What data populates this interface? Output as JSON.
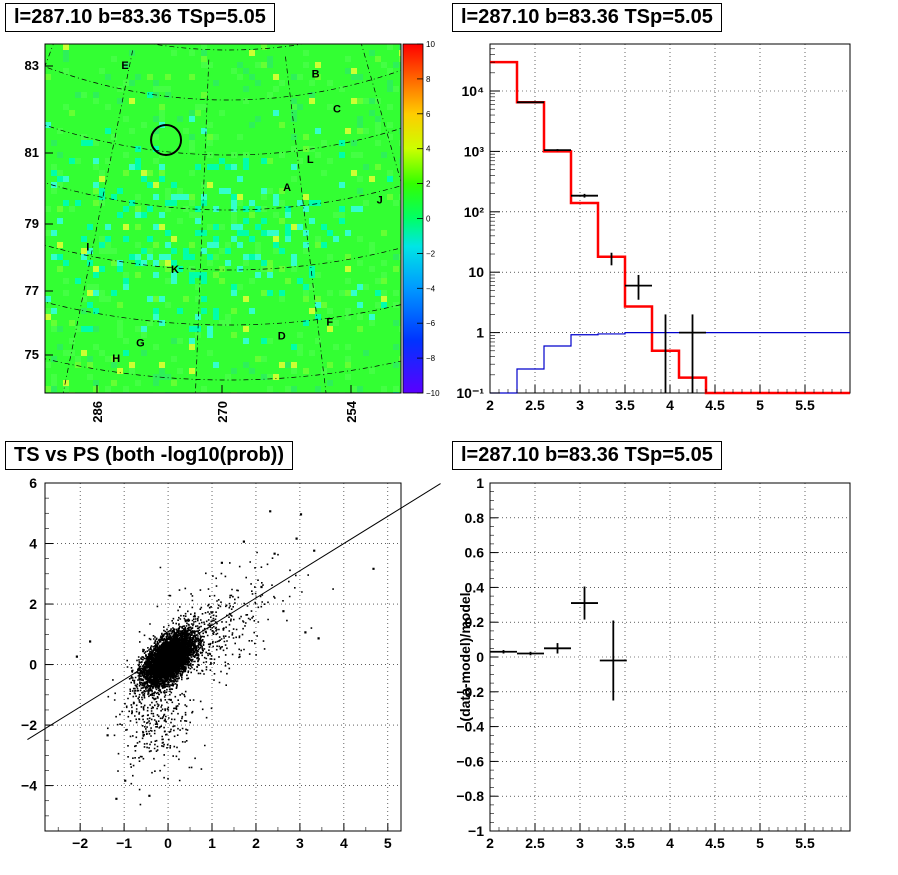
{
  "panels": {
    "skymap": {
      "title": "l=287.10 b=83.36 TSp=5.05",
      "y_ticks": [
        "83",
        "81",
        "79",
        "77",
        "75"
      ],
      "x_ticks": [
        "286",
        "270",
        "254"
      ],
      "colorbar_ticks": [
        "10",
        "8",
        "6",
        "4",
        "2",
        "0",
        "−2",
        "−4",
        "−6",
        "−8",
        "−10"
      ],
      "source_labels": [
        {
          "label": "E",
          "x": 0.225,
          "y": 0.06
        },
        {
          "label": "B",
          "x": 0.76,
          "y": 0.085
        },
        {
          "label": "C",
          "x": 0.82,
          "y": 0.185
        },
        {
          "label": "L",
          "x": 0.745,
          "y": 0.33
        },
        {
          "label": "A",
          "x": 0.68,
          "y": 0.41
        },
        {
          "label": "J",
          "x": 0.94,
          "y": 0.445
        },
        {
          "label": "I",
          "x": 0.12,
          "y": 0.58
        },
        {
          "label": "K",
          "x": 0.365,
          "y": 0.645
        },
        {
          "label": "F",
          "x": 0.8,
          "y": 0.795
        },
        {
          "label": "D",
          "x": 0.665,
          "y": 0.835
        },
        {
          "label": "G",
          "x": 0.268,
          "y": 0.855
        },
        {
          "label": "H",
          "x": 0.2,
          "y": 0.9
        }
      ],
      "circle": {
        "x": 0.34,
        "y": 0.275
      }
    },
    "spectrum": {
      "title": "l=287.10 b=83.36 TSp=5.05",
      "x_ticks": [
        "2",
        "2.5",
        "3",
        "3.5",
        "4",
        "4.5",
        "5",
        "5.5"
      ],
      "y_ticks": [
        "10⁻¹",
        "1",
        "10",
        "10²",
        "10³",
        "10⁴"
      ]
    },
    "scatter": {
      "title": "TS vs PS (both -log10(prob))",
      "x_ticks": [
        "−2",
        "−1",
        "0",
        "1",
        "2",
        "3",
        "4",
        "5"
      ],
      "y_ticks": [
        "6",
        "4",
        "2",
        "0",
        "−2",
        "−4"
      ]
    },
    "residual": {
      "title": "l=287.10 b=83.36 TSp=5.05",
      "ylabel": "(data-model)/model",
      "x_ticks": [
        "2",
        "2.5",
        "3",
        "3.5",
        "4",
        "4.5",
        "5",
        "5.5"
      ],
      "y_ticks": [
        "1",
        "0.8",
        "0.6",
        "0.4",
        "0.2",
        "0",
        "−0.2",
        "−0.4",
        "−0.6",
        "−0.8",
        "−1"
      ]
    }
  },
  "chart_data": [
    {
      "type": "heatmap",
      "title": "l=287.10 b=83.36 TSp=5.05",
      "xlabel": "",
      "ylabel": "",
      "y_ticks": [
        83,
        81,
        79,
        77,
        75
      ],
      "x_ticks": [
        286,
        270,
        254
      ],
      "zlim": [
        -10,
        10
      ],
      "grid": true
    },
    {
      "type": "line",
      "title": "l=287.10 b=83.36 TSp=5.05",
      "xlim": [
        2,
        6
      ],
      "ylim": [
        0.1,
        60000
      ],
      "yscale": "log",
      "grid": true,
      "series": [
        {
          "color": "#ff0000",
          "style": "step",
          "edges": [
            2.0,
            2.3,
            2.6,
            2.9,
            3.2,
            3.5,
            3.8,
            4.1,
            4.4,
            6.0
          ],
          "values": [
            30000,
            6500,
            1000,
            140,
            18,
            2.7,
            0.5,
            0.18,
            0.1
          ]
        },
        {
          "color": "#0000cc",
          "style": "step",
          "edges": [
            2.0,
            2.3,
            2.6,
            2.9,
            3.2,
            3.5,
            3.8,
            4.1,
            6.0
          ],
          "values": [
            0.1,
            0.25,
            0.6,
            0.92,
            0.95,
            1.0,
            1.0,
            1.0
          ]
        },
        {
          "color": "#000000",
          "style": "errorbar",
          "points": [
            {
              "x": 2.45,
              "y": 6500,
              "xerr": 0.15,
              "ylo": 6400,
              "yhi": 6600
            },
            {
              "x": 2.75,
              "y": 1050,
              "xerr": 0.15,
              "ylo": 1010,
              "yhi": 1090
            },
            {
              "x": 3.05,
              "y": 185,
              "xerr": 0.15,
              "ylo": 172,
              "yhi": 198
            },
            {
              "x": 3.35,
              "y": 17,
              "xerr": 0.0,
              "ylo": 13,
              "yhi": 21
            },
            {
              "x": 3.65,
              "y": 6,
              "xerr": 0.15,
              "ylo": 3.5,
              "yhi": 9
            },
            {
              "x": 3.95,
              "y": 0.1,
              "xerr": 0.0,
              "ylo": 0.1,
              "yhi": 2
            },
            {
              "x": 4.25,
              "y": 1.0,
              "xerr": 0.15,
              "ylo": 0.1,
              "yhi": 2
            }
          ]
        }
      ]
    },
    {
      "type": "scatter",
      "title": "TS vs PS (both -log10(prob))",
      "xlim": [
        -2.8,
        5.3
      ],
      "ylim": [
        -5.5,
        6
      ],
      "grid": true,
      "fit_line": {
        "slope": 0.9,
        "intercept": 0.4
      },
      "cloud": {
        "n": 9000,
        "sx": 0.28,
        "sy": 0.42,
        "rho": 0.55,
        "tail_points": 700
      },
      "outliers": [
        [
          2.3,
          5.1
        ],
        [
          3.0,
          5.0
        ],
        [
          1.7,
          4.1
        ],
        [
          2.4,
          3.7
        ],
        [
          2.9,
          4.2
        ],
        [
          3.3,
          3.8
        ],
        [
          4.65,
          3.2
        ],
        [
          3.4,
          0.9
        ],
        [
          3.1,
          1.1
        ],
        [
          2.6,
          1.8
        ],
        [
          -1.2,
          -4.4
        ],
        [
          -0.45,
          -4.3
        ],
        [
          -1.0,
          -3.8
        ],
        [
          -1.4,
          -2.3
        ],
        [
          -2.1,
          0.3
        ],
        [
          -1.8,
          0.8
        ],
        [
          1.2,
          3.4
        ],
        [
          2.1,
          2.6
        ]
      ]
    },
    {
      "type": "scatter",
      "title": "l=287.10 b=83.36 TSp=5.05",
      "ylabel": "(data-model)/model",
      "xlim": [
        2,
        6
      ],
      "ylim": [
        -1,
        1
      ],
      "grid": true,
      "points": [
        {
          "x": 2.15,
          "y": 0.03,
          "xerr": 0.15,
          "yerr": 0.01
        },
        {
          "x": 2.45,
          "y": 0.02,
          "xerr": 0.15,
          "yerr": 0.01
        },
        {
          "x": 2.75,
          "y": 0.05,
          "xerr": 0.15,
          "yerr": 0.03
        },
        {
          "x": 3.05,
          "y": 0.31,
          "xerr": 0.15,
          "yerr": 0.095
        },
        {
          "x": 3.37,
          "y": -0.02,
          "xerr": 0.15,
          "yerr": 0.23
        }
      ]
    }
  ]
}
